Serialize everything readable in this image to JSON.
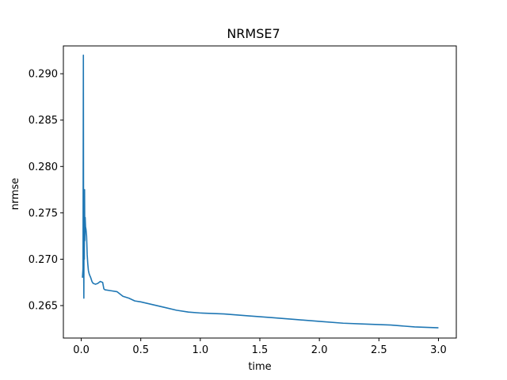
{
  "chart_data": {
    "type": "line",
    "title": "NRMSE7",
    "xlabel": "time",
    "ylabel": "nrmse",
    "xlim": [
      -0.15,
      3.15
    ],
    "ylim": [
      0.2615,
      0.293
    ],
    "grid": false,
    "legend": false,
    "x_ticks": [
      0.0,
      0.5,
      1.0,
      1.5,
      2.0,
      2.5,
      3.0
    ],
    "x_tick_labels": [
      "0.0",
      "0.5",
      "1.0",
      "1.5",
      "2.0",
      "2.5",
      "3.0"
    ],
    "y_ticks": [
      0.265,
      0.27,
      0.275,
      0.28,
      0.285,
      0.29
    ],
    "y_tick_labels": [
      "0.265",
      "0.270",
      "0.275",
      "0.280",
      "0.285",
      "0.290"
    ],
    "colors": {
      "line": "#1f77b4",
      "axes": "#000000",
      "background": "#ffffff"
    },
    "series": [
      {
        "x": [
          0.01,
          0.015,
          0.018,
          0.02,
          0.022,
          0.024,
          0.026,
          0.028,
          0.03,
          0.033,
          0.036,
          0.04,
          0.045,
          0.05,
          0.055,
          0.06,
          0.065,
          0.07,
          0.08,
          0.09,
          0.1,
          0.12,
          0.14,
          0.16,
          0.18,
          0.19,
          0.2,
          0.25,
          0.3,
          0.35,
          0.4,
          0.45,
          0.5,
          0.6,
          0.7,
          0.8,
          0.9,
          1.0,
          1.2,
          1.4,
          1.6,
          1.8,
          2.0,
          2.2,
          2.4,
          2.6,
          2.8,
          3.0
        ],
        "y": [
          0.268,
          0.269,
          0.292,
          0.27,
          0.2658,
          0.276,
          0.27,
          0.2775,
          0.272,
          0.2745,
          0.2735,
          0.2732,
          0.2725,
          0.2705,
          0.2695,
          0.2688,
          0.2685,
          0.2683,
          0.268,
          0.2676,
          0.2674,
          0.2673,
          0.2674,
          0.2676,
          0.2675,
          0.2668,
          0.2667,
          0.2666,
          0.2665,
          0.266,
          0.2658,
          0.2655,
          0.2654,
          0.2651,
          0.2648,
          0.2645,
          0.2643,
          0.2642,
          0.2641,
          0.2639,
          0.2637,
          0.2635,
          0.2633,
          0.2631,
          0.263,
          0.2629,
          0.2627,
          0.2626
        ]
      }
    ]
  }
}
